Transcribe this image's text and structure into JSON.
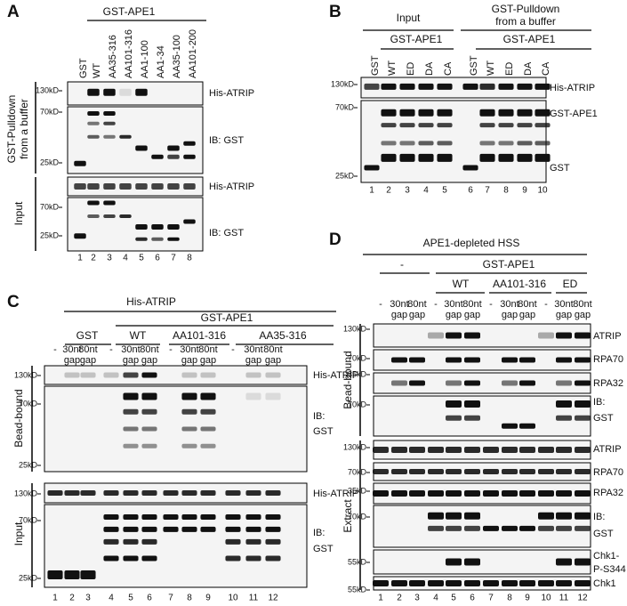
{
  "panels": [
    {
      "letter": "A",
      "headers": [
        [
          "GST-APE1"
        ]
      ],
      "lanes": [
        [
          "GST"
        ],
        [
          "WT"
        ],
        [
          "AA35-316"
        ],
        [
          "AA101-316"
        ],
        [
          "AA1-100"
        ],
        [
          "AA1-34"
        ],
        [
          "AA35-100"
        ],
        [
          "AA101-200"
        ]
      ],
      "sections": [
        {
          "label": [
            "GST-Pulldown",
            "from a buffer"
          ],
          "rows": [
            {
              "markers": [
                "130kD"
              ],
              "label": [
                "His-ATRIP"
              ]
            },
            {
              "markers": [
                "70kD",
                "25kD"
              ],
              "label": [
                "IB: GST"
              ]
            }
          ]
        },
        {
          "label": [
            "Input"
          ],
          "rows": [
            {
              "markers": [],
              "label": [
                "His-ATRIP"
              ]
            },
            {
              "markers": [
                "70kD",
                "25kD"
              ],
              "label": [
                "IB: GST"
              ]
            }
          ]
        }
      ],
      "lane_numbers": [
        1,
        2,
        3,
        4,
        5,
        6,
        7,
        8
      ]
    },
    {
      "letter": "B",
      "headers": [
        [
          "Input"
        ],
        [
          "GST-Pulldown",
          "from a buffer"
        ],
        [
          "GST-APE1"
        ],
        [
          "GST-APE1"
        ]
      ],
      "lanes": [
        [
          "GST"
        ],
        [
          "WT"
        ],
        [
          "ED"
        ],
        [
          "DA"
        ],
        [
          "CA"
        ],
        [
          "GST"
        ],
        [
          "WT"
        ],
        [
          "ED"
        ],
        [
          "DA"
        ],
        [
          "CA"
        ]
      ],
      "sections": [
        {
          "rows": [
            {
              "markers": [
                "130kD"
              ],
              "label": [
                "His-ATRIP"
              ]
            },
            {
              "markers": [
                "70kD",
                "25kD"
              ],
              "label": [
                "GST-APE1",
                "GST"
              ]
            }
          ]
        }
      ],
      "lane_numbers": [
        1,
        2,
        3,
        4,
        5,
        6,
        7,
        8,
        9,
        10
      ]
    },
    {
      "letter": "C",
      "headers": [
        [
          "His-ATRIP"
        ],
        [
          "GST"
        ],
        [
          "GST-APE1"
        ],
        [
          "WT"
        ],
        [
          "AA101-316"
        ],
        [
          "AA35-316"
        ]
      ],
      "lanes": [
        [
          "-"
        ],
        [
          "30nt",
          "gap"
        ],
        [
          "80nt",
          "gap"
        ],
        [
          "-"
        ],
        [
          "30nt",
          "gap"
        ],
        [
          "80nt",
          "gap"
        ],
        [
          "-"
        ],
        [
          "30nt",
          "gap"
        ],
        [
          "80nt",
          "gap"
        ],
        [
          "-"
        ],
        [
          "30nt",
          "gap"
        ],
        [
          "80nt",
          "gap"
        ]
      ],
      "sections": [
        {
          "label": [
            "Bead-bound"
          ],
          "rows": [
            {
              "markers": [
                "130kD"
              ],
              "label": [
                "His-ATRIP"
              ]
            },
            {
              "markers": [
                "70kD",
                "25kD"
              ],
              "label": [
                "IB:",
                "GST"
              ]
            }
          ]
        },
        {
          "label": [
            "Input"
          ],
          "rows": [
            {
              "markers": [
                "130kD"
              ],
              "label": [
                "His-ATRIP"
              ]
            },
            {
              "markers": [
                "70kD",
                "25kD"
              ],
              "label": [
                "IB:",
                "GST"
              ]
            }
          ]
        }
      ],
      "lane_numbers": [
        1,
        2,
        3,
        4,
        5,
        6,
        7,
        8,
        9,
        10,
        11,
        12
      ]
    },
    {
      "letter": "D",
      "headers": [
        [
          "APE1-depleted HSS"
        ],
        [
          "-"
        ],
        [
          "GST-APE1"
        ],
        [
          "WT"
        ],
        [
          "AA101-316"
        ],
        [
          "ED"
        ]
      ],
      "lanes": [
        [
          "-"
        ],
        [
          "30nt",
          "gap"
        ],
        [
          "80nt",
          "gap"
        ],
        [
          "-"
        ],
        [
          "30nt",
          "gap"
        ],
        [
          "80nt",
          "gap"
        ],
        [
          "-"
        ],
        [
          "30nt",
          "gap"
        ],
        [
          "80nt",
          "gap"
        ],
        [
          "-"
        ],
        [
          "30nt",
          "gap"
        ],
        [
          "80nt",
          "gap"
        ]
      ],
      "sections": [
        {
          "label": [
            "Bead-bound"
          ],
          "rows": [
            {
              "markers": [
                "130kD"
              ],
              "label": [
                "ATRIP"
              ]
            },
            {
              "markers": [
                "70kD"
              ],
              "label": [
                "RPA70"
              ]
            },
            {
              "markers": [
                "35kD"
              ],
              "label": [
                "RPA32"
              ]
            },
            {
              "markers": [
                "70kD"
              ],
              "label": [
                "IB:",
                "GST"
              ]
            }
          ]
        },
        {
          "label": [
            "Extract"
          ],
          "rows": [
            {
              "markers": [
                "130kD"
              ],
              "label": [
                "ATRIP"
              ]
            },
            {
              "markers": [
                "70kD"
              ],
              "label": [
                "RPA70"
              ]
            },
            {
              "markers": [
                "35kD"
              ],
              "label": [
                "RPA32"
              ]
            },
            {
              "markers": [
                "70kD"
              ],
              "label": [
                "IB:",
                "GST"
              ]
            },
            {
              "markers": [
                "55kD"
              ],
              "label": [
                "Chk1-",
                "P-S344"
              ]
            },
            {
              "markers": [
                "55kD"
              ],
              "label": [
                "Chk1"
              ]
            }
          ]
        }
      ],
      "lane_numbers": [
        1,
        2,
        3,
        4,
        5,
        6,
        7,
        8,
        9,
        10,
        11,
        12
      ]
    }
  ]
}
